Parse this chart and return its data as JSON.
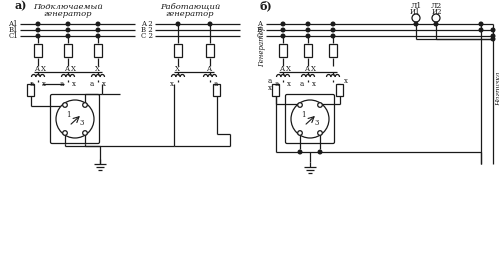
{
  "bg_color": "#ffffff",
  "line_color": "#1a1a1a",
  "title_a": "а)",
  "title_b": "б)",
  "label_podkl1": "Подключаемый",
  "label_podkl2": "генератор",
  "label_rabot1": "Работающий",
  "label_rabot2": "генератор",
  "label_A1": "A1",
  "label_B1": "B1",
  "label_C1": "C1",
  "label_A2": "A 2",
  "label_B2": "B 2",
  "label_C2": "C 2",
  "label_L1": "Л1",
  "label_L2": "Л2",
  "label_I1": "И1",
  "label_I2": "И2",
  "label_generator": "Генератор",
  "label_nagruzka": "Нагрузка"
}
